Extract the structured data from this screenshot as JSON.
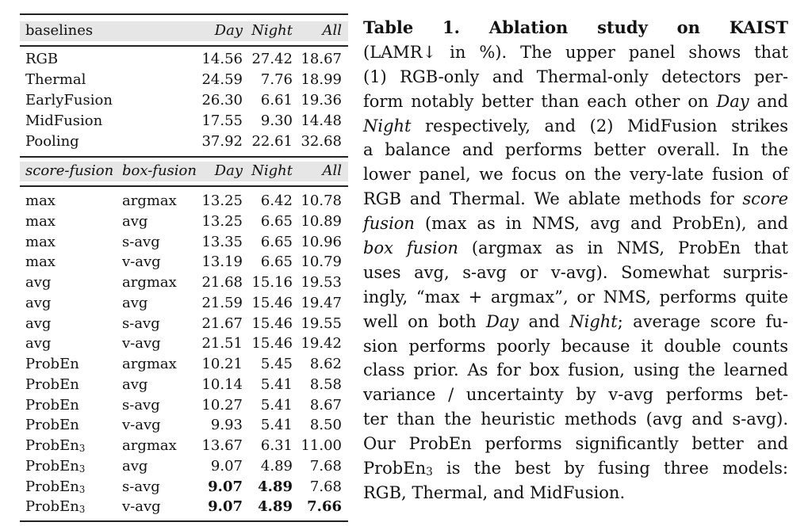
{
  "table": {
    "top_header": [
      "baselines",
      "Day",
      "Night",
      "All"
    ],
    "baselines": [
      {
        "name": "RGB",
        "day": "14.56",
        "night": "27.42",
        "all": "18.67"
      },
      {
        "name": "Thermal",
        "day": "24.59",
        "night": "7.76",
        "all": "18.99"
      },
      {
        "name": "EarlyFusion",
        "day": "26.30",
        "night": "6.61",
        "all": "19.36"
      },
      {
        "name": "MidFusion",
        "day": "17.55",
        "night": "9.30",
        "all": "14.48"
      },
      {
        "name": "Pooling",
        "day": "37.92",
        "night": "22.61",
        "all": "32.68"
      }
    ],
    "lower_header": [
      "score-fusion",
      "box-fusion",
      "Day",
      "Night",
      "All"
    ],
    "fusion_rows": [
      {
        "score": "max",
        "sub": "",
        "box": "argmax",
        "day": "13.25",
        "night": "6.42",
        "all": "10.78",
        "bold": []
      },
      {
        "score": "max",
        "sub": "",
        "box": "avg",
        "day": "13.25",
        "night": "6.65",
        "all": "10.89",
        "bold": []
      },
      {
        "score": "max",
        "sub": "",
        "box": "s-avg",
        "day": "13.35",
        "night": "6.65",
        "all": "10.96",
        "bold": []
      },
      {
        "score": "max",
        "sub": "",
        "box": "v-avg",
        "day": "13.19",
        "night": "6.65",
        "all": "10.79",
        "bold": []
      },
      {
        "score": "avg",
        "sub": "",
        "box": "argmax",
        "day": "21.68",
        "night": "15.16",
        "all": "19.53",
        "bold": []
      },
      {
        "score": "avg",
        "sub": "",
        "box": "avg",
        "day": "21.59",
        "night": "15.46",
        "all": "19.47",
        "bold": []
      },
      {
        "score": "avg",
        "sub": "",
        "box": "s-avg",
        "day": "21.67",
        "night": "15.46",
        "all": "19.55",
        "bold": []
      },
      {
        "score": "avg",
        "sub": "",
        "box": "v-avg",
        "day": "21.51",
        "night": "15.46",
        "all": "19.42",
        "bold": []
      },
      {
        "score": "ProbEn",
        "sub": "",
        "box": "argmax",
        "day": "10.21",
        "night": "5.45",
        "all": "8.62",
        "bold": []
      },
      {
        "score": "ProbEn",
        "sub": "",
        "box": "avg",
        "day": "10.14",
        "night": "5.41",
        "all": "8.58",
        "bold": []
      },
      {
        "score": "ProbEn",
        "sub": "",
        "box": "s-avg",
        "day": "10.27",
        "night": "5.41",
        "all": "8.67",
        "bold": []
      },
      {
        "score": "ProbEn",
        "sub": "",
        "box": "v-avg",
        "day": "9.93",
        "night": "5.41",
        "all": "8.50",
        "bold": []
      },
      {
        "score": "ProbEn",
        "sub": "3",
        "box": "argmax",
        "day": "13.67",
        "night": "6.31",
        "all": "11.00",
        "bold": []
      },
      {
        "score": "ProbEn",
        "sub": "3",
        "box": "avg",
        "day": "9.07",
        "night": "4.89",
        "all": "7.68",
        "bold": []
      },
      {
        "score": "ProbEn",
        "sub": "3",
        "box": "s-avg",
        "day": "9.07",
        "night": "4.89",
        "all": "7.68",
        "bold": [
          "day",
          "night"
        ]
      },
      {
        "score": "ProbEn",
        "sub": "3",
        "box": "v-avg",
        "day": "9.07",
        "night": "4.89",
        "all": "7.66",
        "bold": [
          "day",
          "night",
          "all"
        ]
      }
    ]
  },
  "caption": {
    "lines": [
      [
        {
          "t": "Table 1. Ablation study on KAIST",
          "s": "bd"
        }
      ],
      [
        {
          "t": "(LAMR↓ in %). The upper panel shows that"
        }
      ],
      [
        {
          "t": "(1) RGB-only and Thermal-only detectors per-"
        }
      ],
      [
        {
          "t": "form notably better than each other on "
        },
        {
          "t": "Day",
          "s": "it"
        },
        {
          "t": " and"
        }
      ],
      [
        {
          "t": "Night",
          "s": "it"
        },
        {
          "t": " respectively, and (2) MidFusion strikes"
        }
      ],
      [
        {
          "t": "a balance and performs better overall. In the"
        }
      ],
      [
        {
          "t": "lower panel, we focus on the very-late fusion of"
        }
      ],
      [
        {
          "t": "RGB and Thermal. We ablate methods for "
        },
        {
          "t": "score",
          "s": "it"
        }
      ],
      [
        {
          "t": "fusion",
          "s": "it"
        },
        {
          "t": " (max as in NMS, avg and ProbEn), and"
        }
      ],
      [
        {
          "t": "box fusion",
          "s": "it"
        },
        {
          "t": " (argmax as in NMS, ProbEn that"
        }
      ],
      [
        {
          "t": "uses avg, s-avg or v-avg). Somewhat surpris-"
        }
      ],
      [
        {
          "t": "ingly, “max + argmax”, or NMS, performs quite"
        }
      ],
      [
        {
          "t": "well on both "
        },
        {
          "t": "Day",
          "s": "it"
        },
        {
          "t": " and "
        },
        {
          "t": "Night",
          "s": "it"
        },
        {
          "t": "; average score fu-"
        }
      ],
      [
        {
          "t": "sion performs poorly because it double counts"
        }
      ],
      [
        {
          "t": "class prior. As for box fusion, using the learned"
        }
      ],
      [
        {
          "t": "variance / uncertainty by v-avg performs bet-"
        }
      ],
      [
        {
          "t": "ter than the heuristic methods (avg and s-avg)."
        }
      ],
      [
        {
          "t": "Our ProbEn performs significantly better and"
        }
      ],
      [
        {
          "t": "ProbEn"
        },
        {
          "t": "3",
          "s": "sub"
        },
        {
          "t": " is the best by fusing three models:"
        }
      ],
      [
        {
          "t": "RGB, Thermal, and MidFusion."
        }
      ]
    ]
  }
}
